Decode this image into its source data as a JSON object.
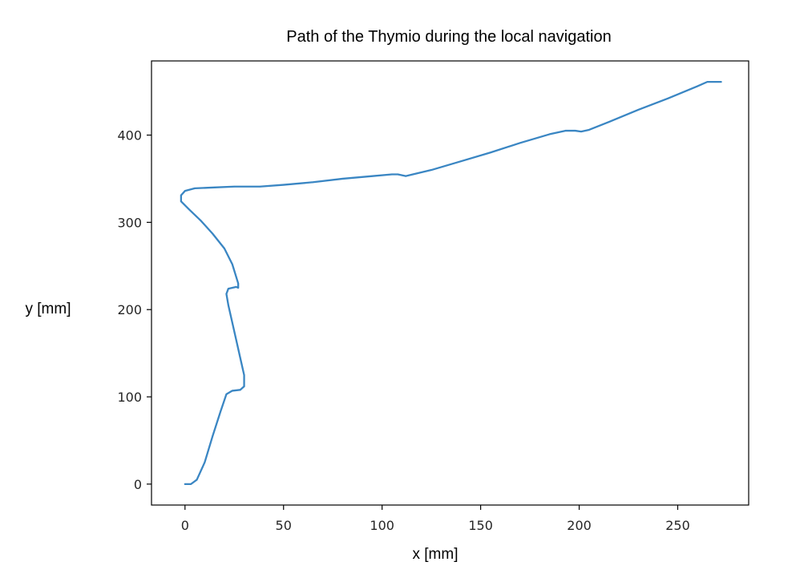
{
  "chart_data": {
    "type": "line",
    "title": "Path of the Thymio during the local navigation",
    "xlabel": "x [mm]",
    "ylabel": "y [mm]",
    "xlim": [
      -17,
      286
    ],
    "ylim": [
      -24,
      485
    ],
    "xticks": [
      0,
      50,
      100,
      150,
      200,
      250
    ],
    "yticks": [
      0,
      100,
      200,
      300,
      400
    ],
    "grid": false,
    "legend": false,
    "line_color": "#3a86c3",
    "series": [
      {
        "x": [
          0,
          3,
          6,
          10,
          14,
          18,
          21,
          24,
          28,
          30,
          30,
          28,
          26,
          24,
          22,
          21,
          22,
          24,
          26,
          27,
          27,
          24,
          20,
          14,
          8,
          2,
          -2,
          -2,
          0,
          5,
          15,
          25,
          38,
          50,
          65,
          80,
          95,
          105,
          108,
          112,
          125,
          140,
          155,
          170,
          185,
          193,
          198,
          201,
          205,
          215,
          230,
          245,
          260,
          265,
          270,
          272
        ],
        "y": [
          0,
          0,
          5,
          25,
          55,
          83,
          103,
          107,
          108,
          112,
          125,
          145,
          165,
          185,
          205,
          218,
          224,
          225,
          226,
          225,
          230,
          252,
          270,
          287,
          302,
          315,
          324,
          331,
          336,
          339,
          340,
          341,
          341,
          343,
          346,
          350,
          353,
          355,
          355,
          353,
          360,
          370,
          380,
          391,
          401,
          405,
          405,
          404,
          406,
          415,
          429,
          442,
          456,
          461,
          461,
          461
        ]
      }
    ]
  }
}
